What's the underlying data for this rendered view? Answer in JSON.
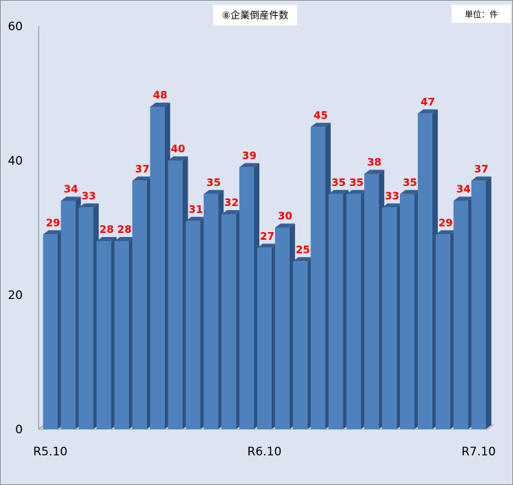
{
  "chart_data": {
    "type": "bar",
    "title": "⑧企業倒産件数",
    "unit_label": "単位：件",
    "categories": [
      "R5.10",
      "",
      "",
      "",
      "",
      "",
      "",
      "",
      "",
      "",
      "",
      "",
      "R6.10",
      "",
      "",
      "",
      "",
      "",
      "",
      "",
      "",
      "",
      "",
      "",
      "R7.10"
    ],
    "values": [
      29,
      34,
      33,
      28,
      28,
      37,
      48,
      40,
      31,
      35,
      32,
      39,
      27,
      30,
      25,
      45,
      35,
      35,
      38,
      33,
      35,
      47,
      29,
      34,
      37
    ],
    "x_tick_labels": [
      "R5.10",
      "R6.10",
      "R7.10"
    ],
    "y_ticks": [
      0,
      20,
      40,
      60
    ],
    "ylim": [
      0,
      60
    ],
    "grid": false,
    "legend": "none",
    "colors": {
      "bar_front": "#4f81bd",
      "bar_side": "#2c5282",
      "bar_top": "#375f94",
      "data_label": "#ff0000",
      "axis": "#9aa3ad",
      "background": "#dbe4f0"
    }
  }
}
